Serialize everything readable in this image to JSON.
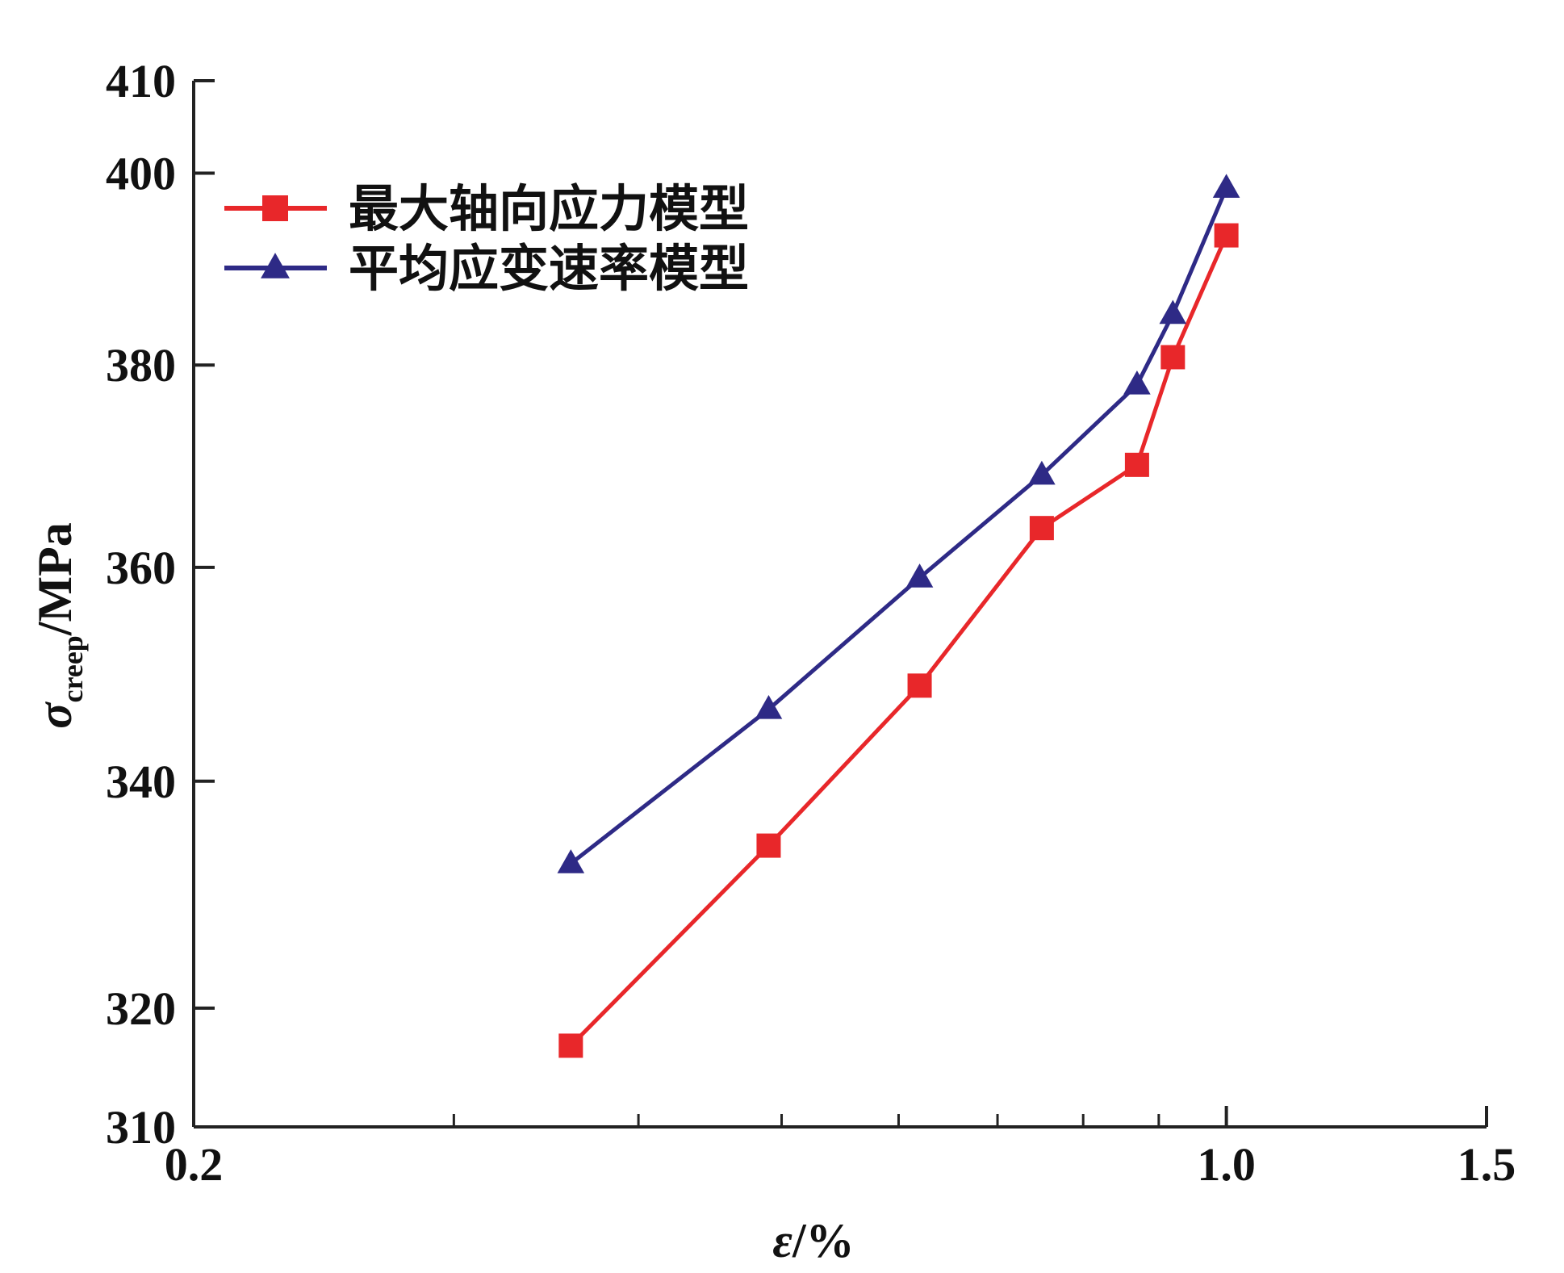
{
  "chart_data": {
    "type": "line",
    "title": "",
    "xlabel": {
      "symbol": "ε",
      "unit": "/%"
    },
    "ylabel": {
      "symbol": "σ",
      "subscript": "creep",
      "unit": "/MPa"
    },
    "x_scale": "log",
    "y_scale": "log",
    "xlim": [
      0.2,
      1.5
    ],
    "ylim": [
      310,
      410
    ],
    "x_ticks": [
      "0.2",
      "1.0",
      "1.5"
    ],
    "y_ticks": [
      "310",
      "320",
      "340",
      "360",
      "380",
      "400",
      "410"
    ],
    "legend_position": "top-left",
    "series": [
      {
        "name": "最大轴向应力模型",
        "color": "#e8272a",
        "marker": "square",
        "x": [
          0.36,
          0.49,
          0.62,
          0.75,
          0.87,
          0.92,
          1.0
        ],
        "y": [
          316.8,
          334.2,
          348.8,
          363.8,
          370.0,
          380.8,
          393.4
        ]
      },
      {
        "name": "平均应变速率模型",
        "color": "#2e2a86",
        "marker": "triangle",
        "x": [
          0.36,
          0.49,
          0.62,
          0.75,
          0.87,
          0.92,
          1.0
        ],
        "y": [
          332.6,
          346.6,
          359.0,
          369.0,
          378.0,
          385.2,
          398.4
        ]
      }
    ]
  }
}
